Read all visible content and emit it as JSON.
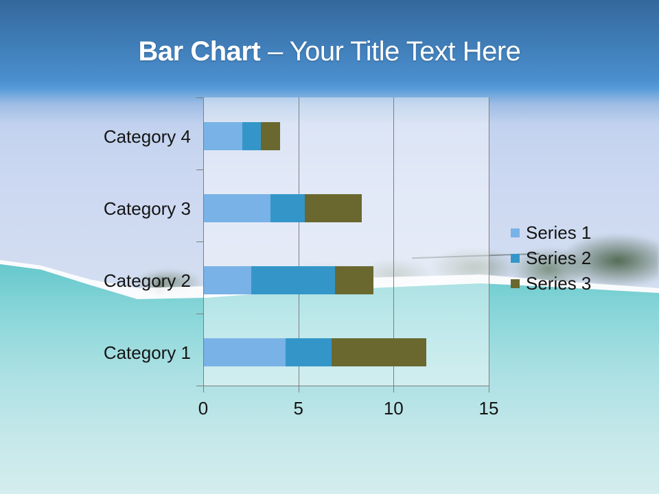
{
  "title": {
    "bold_part": "Bar Chart",
    "regular_part": "– Your Title Text Here"
  },
  "chart_data": {
    "type": "bar",
    "orientation": "horizontal",
    "stacked": true,
    "title": "",
    "xlabel": "",
    "ylabel": "",
    "categories": [
      "Category 4",
      "Category 3",
      "Category 2",
      "Category 1"
    ],
    "series": [
      {
        "name": "Series 1",
        "color": "#79b2e6",
        "values": [
          2,
          3.5,
          2.5,
          4.3
        ]
      },
      {
        "name": "Series 2",
        "color": "#3496c8",
        "values": [
          1,
          1.8,
          4.4,
          2.4
        ]
      },
      {
        "name": "Series 3",
        "color": "#6a682f",
        "values": [
          1,
          3,
          2,
          5
        ]
      }
    ],
    "xlim": [
      0,
      15
    ],
    "x_ticks": [
      0,
      5,
      10,
      15
    ],
    "grid": true,
    "legend_position": "right"
  },
  "colors": {
    "header_blue_top": "#34689c",
    "header_blue_bottom": "#549ad8",
    "sky_pale": "#cedaf1",
    "water_turquoise": "#66c8cb",
    "gridline": "#7d7d7d",
    "chart_text": "#141414",
    "title_text": "#ffffff"
  }
}
